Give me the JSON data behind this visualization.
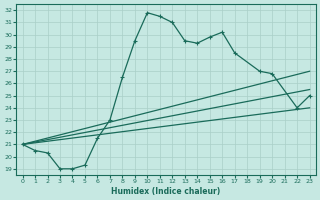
{
  "xlabel": "Humidex (Indice chaleur)",
  "xlim": [
    -0.5,
    23.5
  ],
  "ylim": [
    18.5,
    32.5
  ],
  "xticks": [
    0,
    1,
    2,
    3,
    4,
    5,
    6,
    7,
    8,
    9,
    10,
    11,
    12,
    13,
    14,
    15,
    16,
    17,
    18,
    19,
    20,
    21,
    22,
    23
  ],
  "yticks": [
    19,
    20,
    21,
    22,
    23,
    24,
    25,
    26,
    27,
    28,
    29,
    30,
    31,
    32
  ],
  "bg_color": "#c6e8e2",
  "line_color": "#1a6b5a",
  "grid_color": "#aacfc8",
  "main_curve_x": [
    0,
    1,
    2,
    3,
    4,
    5,
    6,
    7,
    8,
    9,
    10,
    11,
    12,
    13,
    14,
    15,
    16,
    17,
    19,
    20,
    22,
    23
  ],
  "main_curve_y": [
    21.0,
    20.5,
    20.3,
    19.0,
    19.0,
    19.3,
    21.5,
    23.0,
    26.5,
    29.5,
    31.8,
    31.5,
    31.0,
    29.5,
    29.3,
    29.8,
    30.2,
    28.5,
    27.0,
    26.8,
    24.0,
    25.0
  ],
  "line1_x": [
    0,
    23
  ],
  "line1_y": [
    21.0,
    27.0
  ],
  "line2_x": [
    0,
    23
  ],
  "line2_y": [
    21.0,
    25.5
  ],
  "line3_x": [
    0,
    23
  ],
  "line3_y": [
    21.0,
    24.0
  ]
}
